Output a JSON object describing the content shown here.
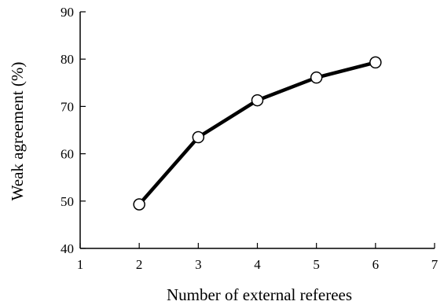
{
  "chart_data": {
    "type": "line",
    "title": "",
    "xlabel": "Number of external referees",
    "ylabel": "Weak agreement (%)",
    "xlim": [
      1,
      7
    ],
    "ylim": [
      40,
      90
    ],
    "xticks": [
      1,
      2,
      3,
      4,
      5,
      6,
      7
    ],
    "yticks": [
      40,
      50,
      60,
      70,
      80,
      90
    ],
    "grid": false,
    "legend": "none",
    "series": [
      {
        "x": [
          2,
          3,
          4,
          5,
          6
        ],
        "y": [
          49.3,
          63.5,
          71.3,
          76.1,
          79.3
        ]
      }
    ],
    "colors": {
      "line": "#000000",
      "marker_fill": "#ffffff",
      "axis": "#000000"
    }
  }
}
